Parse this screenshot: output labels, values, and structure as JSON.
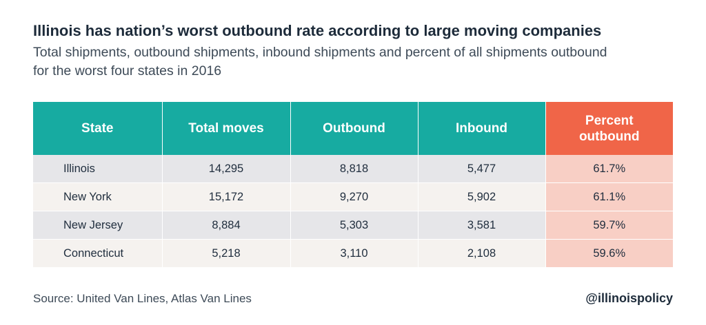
{
  "chart_data": {
    "type": "table",
    "title": "Illinois has nation’s worst outbound rate according to large moving companies",
    "subtitle": "Total shipments, outbound shipments, inbound shipments and percent of all shipments outbound for the worst four states in 2016",
    "columns": [
      "State",
      "Total moves",
      "Outbound",
      "Inbound",
      "Percent outbound"
    ],
    "rows": [
      [
        "Illinois",
        "14,295",
        "8,818",
        "5,477",
        "61.7%"
      ],
      [
        "New York",
        "15,172",
        "9,270",
        "5,902",
        "61.1%"
      ],
      [
        "New Jersey",
        "8,884",
        "5,303",
        "3,581",
        "59.7%"
      ],
      [
        "Connecticut",
        "5,218",
        "3,110",
        "2,108",
        "59.6%"
      ]
    ],
    "values": {
      "total_moves": [
        14295,
        15172,
        8884,
        5218
      ],
      "outbound": [
        8818,
        9270,
        5303,
        3110
      ],
      "inbound": [
        5477,
        5902,
        3581,
        2108
      ],
      "percent_outbound": [
        61.7,
        61.1,
        59.7,
        59.6
      ]
    }
  },
  "footer": {
    "source": "Source: United Van Lines, Atlas Van Lines",
    "brand": "@illinoispolicy"
  },
  "colors": {
    "header": "#17aba1",
    "accent_header": "#f06548",
    "accent_cell": "#f8cfc5",
    "row_odd": "#e6e6e9",
    "row_even": "#f5f2ef"
  }
}
